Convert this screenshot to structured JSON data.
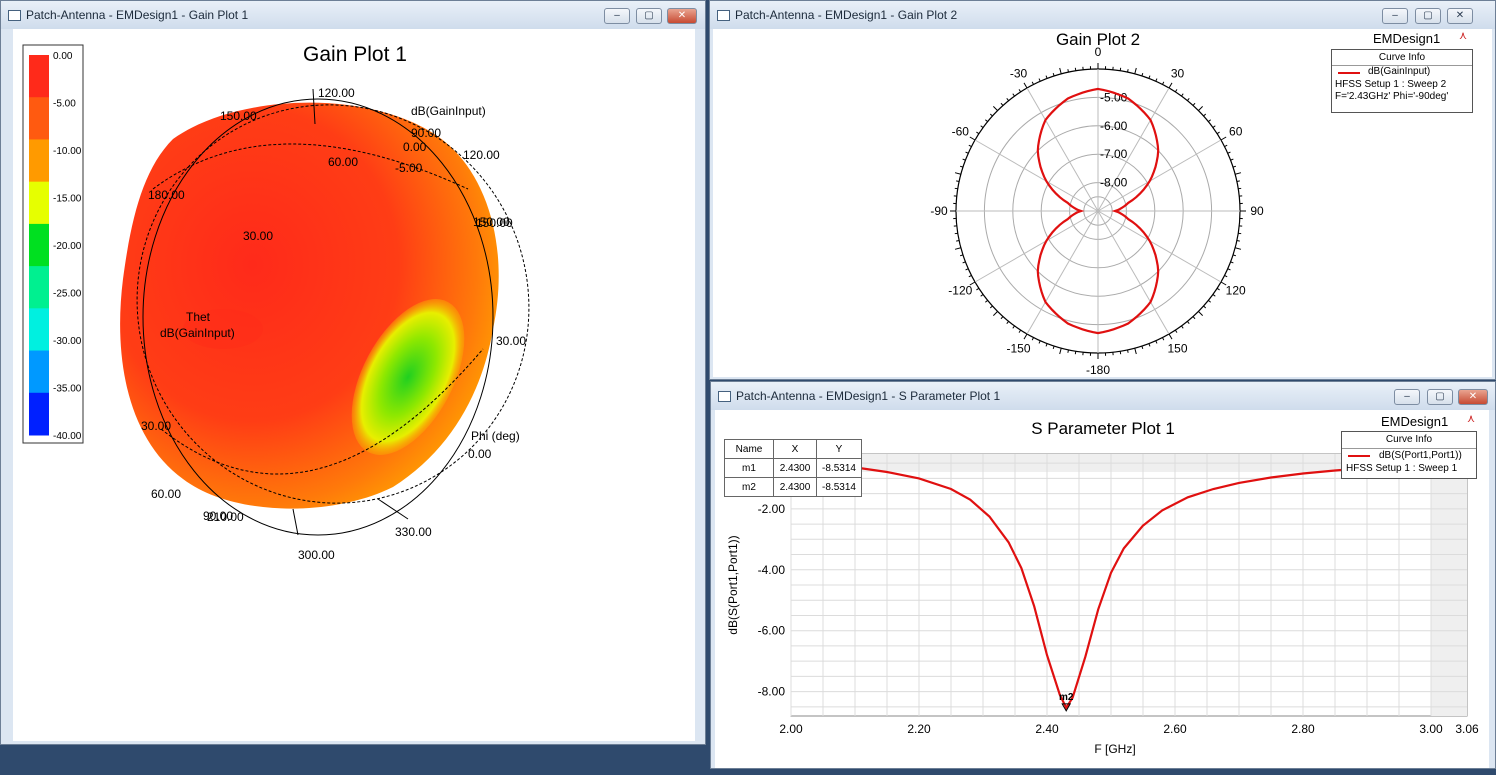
{
  "windows": {
    "gain1": {
      "title": "Patch-Antenna - EMDesign1 - Gain Plot 1",
      "plot_title": "Gain Plot 1",
      "quantity_label": "dB(GainInput)",
      "theta_label": "Thet",
      "center_label": "dB(GainInput)",
      "phi_label": "Phi (deg)",
      "colorbar": {
        "labels": [
          "0.00",
          "-5.00",
          "-10.00",
          "-15.00",
          "-20.00",
          "-25.00",
          "-30.00",
          "-35.00",
          "-40.00"
        ],
        "colors": [
          "#ff2a1a",
          "#ff5a10",
          "#ff9a00",
          "#e6ff00",
          "#00e020",
          "#00f090",
          "#00f0e0",
          "#0099ff",
          "#0020ff"
        ]
      },
      "angle_labels": [
        "120.00",
        "150.00",
        "180.00",
        "60.00",
        "30.00",
        "90.00",
        "0.00",
        "-5.00",
        "120.00",
        "150.00",
        "150.00",
        "30.00",
        "30.00",
        "60.00",
        "90.00",
        "300.00",
        "330.00",
        "0.00",
        "210.00"
      ]
    },
    "gain2": {
      "title": "Patch-Antenna - EMDesign1 - Gain Plot 2",
      "plot_title": "Gain Plot 2",
      "design": "EMDesign1",
      "curve_info": {
        "header": "Curve Info",
        "name": "dB(GainInput)",
        "setup": "HFSS Setup 1 : Sweep 2",
        "params": "F='2.43GHz' Phi='-90deg'"
      },
      "angle_labels": [
        "0",
        "30",
        "60",
        "90",
        "120",
        "150",
        "-180",
        "-150",
        "-120",
        "-90",
        "-60",
        "-30"
      ],
      "ring_labels": [
        "-5.00",
        "-6.00",
        "-7.00",
        "-8.00"
      ]
    },
    "sparam": {
      "title": "Patch-Antenna - EMDesign1 - S Parameter Plot 1",
      "plot_title": "S Parameter Plot 1",
      "design": "EMDesign1",
      "marker_table": {
        "headers": [
          "Name",
          "X",
          "Y"
        ],
        "rows": [
          [
            "m1",
            "2.4300",
            "-8.5314"
          ],
          [
            "m2",
            "2.4300",
            "-8.5314"
          ]
        ]
      },
      "curve_info": {
        "header": "Curve Info",
        "name": "dB(S(Port1,Port1))",
        "setup": "HFSS Setup 1 : Sweep 1"
      },
      "marker_label": "m2"
    }
  },
  "chart_data": [
    {
      "type": "polar",
      "title": "Gain Plot 2",
      "series": [
        {
          "name": "dB(GainInput)",
          "color": "#e01010",
          "theta_deg": [
            0,
            15,
            30,
            45,
            60,
            75,
            90,
            105,
            120,
            135,
            150,
            165,
            180,
            -165,
            -150,
            -135,
            -120,
            -105,
            -90,
            -75,
            -60,
            -45,
            -30,
            -15
          ],
          "r_db": [
            -4.7,
            -4.9,
            -5.3,
            -6.0,
            -6.9,
            -7.9,
            -8.4,
            -7.9,
            -6.9,
            -6.0,
            -5.3,
            -4.9,
            -4.7,
            -4.9,
            -5.3,
            -6.0,
            -6.9,
            -7.9,
            -8.4,
            -7.9,
            -6.9,
            -6.0,
            -5.3,
            -4.9
          ]
        }
      ],
      "r_ticks": [
        -5,
        -6,
        -7,
        -8
      ],
      "r_range": [
        -9.0,
        -4.0
      ]
    },
    {
      "type": "line",
      "title": "S Parameter Plot 1",
      "xlabel": "F [GHz]",
      "ylabel": "dB(S(Port1,Port1))",
      "xlim": [
        2.0,
        3.06
      ],
      "ylim": [
        -8.8,
        -0.2
      ],
      "xticks": [
        "2.00",
        "2.20",
        "2.40",
        "2.60",
        "2.80",
        "3.00",
        "3.06"
      ],
      "yticks": [
        "-2.00",
        "-4.00",
        "-6.00",
        "-8.00"
      ],
      "series": [
        {
          "name": "dB(S(Port1,Port1))",
          "color": "#e01010",
          "x": [
            2.0,
            2.05,
            2.1,
            2.15,
            2.2,
            2.25,
            2.28,
            2.31,
            2.34,
            2.36,
            2.38,
            2.4,
            2.42,
            2.43,
            2.44,
            2.46,
            2.48,
            2.5,
            2.52,
            2.55,
            2.58,
            2.62,
            2.66,
            2.7,
            2.75,
            2.8,
            2.85,
            2.9,
            2.95,
            3.0,
            3.06
          ],
          "y": [
            -0.45,
            -0.53,
            -0.64,
            -0.79,
            -1.0,
            -1.35,
            -1.7,
            -2.25,
            -3.1,
            -3.95,
            -5.2,
            -6.8,
            -8.1,
            -8.53,
            -8.2,
            -6.85,
            -5.3,
            -4.1,
            -3.3,
            -2.55,
            -2.05,
            -1.62,
            -1.35,
            -1.15,
            -0.97,
            -0.84,
            -0.74,
            -0.66,
            -0.6,
            -0.54,
            -0.49
          ]
        }
      ],
      "markers": [
        {
          "name": "m2",
          "x": 2.43,
          "y": -8.5314
        }
      ]
    }
  ]
}
